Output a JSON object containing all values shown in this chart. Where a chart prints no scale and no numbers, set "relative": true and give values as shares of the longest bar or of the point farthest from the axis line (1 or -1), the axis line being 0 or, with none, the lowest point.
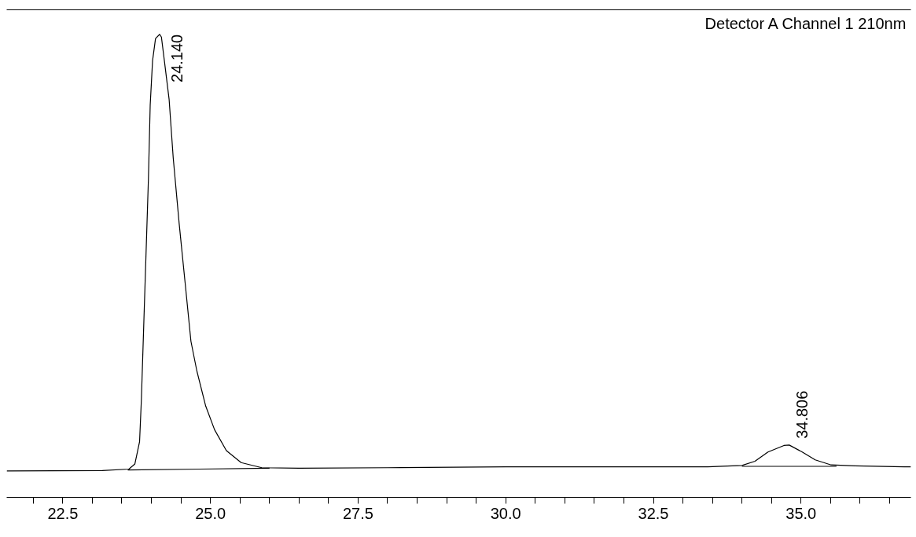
{
  "chart_data": {
    "type": "line",
    "relative": true,
    "marker": "none",
    "line_style": "solid",
    "grid": false,
    "tick_labels": "x",
    "xlim": [
      21.55,
      36.86
    ],
    "xticks": [
      {
        "value": 22.0,
        "label": null
      },
      22.5,
      {
        "value": 23.0,
        "label": null
      },
      {
        "value": 23.5,
        "label": null
      },
      {
        "value": 24.0,
        "label": null
      },
      {
        "value": 24.5,
        "label": null
      },
      {
        "value": 25.0,
        "label": "25.0"
      },
      {
        "value": 25.5,
        "label": null
      },
      {
        "value": 26.0,
        "label": null
      },
      {
        "value": 26.5,
        "label": null
      },
      {
        "value": 27.0,
        "label": null
      },
      27.5,
      {
        "value": 28.0,
        "label": null
      },
      {
        "value": 28.5,
        "label": null
      },
      {
        "value": 29.0,
        "label": null
      },
      {
        "value": 29.5,
        "label": null
      },
      {
        "value": 30.0,
        "label": "30.0"
      },
      {
        "value": 30.5,
        "label": null
      },
      {
        "value": 31.0,
        "label": null
      },
      {
        "value": 31.5,
        "label": null
      },
      {
        "value": 32.0,
        "label": null
      },
      32.5,
      {
        "value": 33.0,
        "label": null
      },
      {
        "value": 33.5,
        "label": null
      },
      {
        "value": 34.0,
        "label": null
      },
      {
        "value": 34.5,
        "label": null
      },
      {
        "value": 35.0,
        "label": "35.0"
      },
      {
        "value": 35.5,
        "label": null
      },
      {
        "value": 36.0,
        "label": null
      },
      {
        "value": 36.5,
        "label": null
      }
    ],
    "series": [
      {
        "color": "#000000",
        "x": [
          21.55,
          23.17,
          23.62,
          23.72,
          23.8,
          23.83,
          23.87,
          23.91,
          23.95,
          23.98,
          24.02,
          24.07,
          24.14,
          24.17,
          24.22,
          24.3,
          24.37,
          24.47,
          24.57,
          24.67,
          24.77,
          24.92,
          25.07,
          25.27,
          25.52,
          25.87,
          26.5,
          28.0,
          30.0,
          32.0,
          33.42,
          34.0,
          34.22,
          34.44,
          34.71,
          34.8,
          35.02,
          35.24,
          35.51,
          35.91,
          36.75,
          36.86
        ],
        "values": [
          0.057,
          0.058,
          0.061,
          0.072,
          0.12,
          0.209,
          0.369,
          0.528,
          0.688,
          0.847,
          0.943,
          0.991,
          1.0,
          0.994,
          0.943,
          0.86,
          0.733,
          0.592,
          0.465,
          0.337,
          0.273,
          0.197,
          0.146,
          0.101,
          0.075,
          0.064,
          0.063,
          0.064,
          0.066,
          0.066,
          0.066,
          0.069,
          0.078,
          0.098,
          0.112,
          0.113,
          0.098,
          0.081,
          0.07,
          0.068,
          0.066,
          0.066
        ]
      },
      {
        "color": "#000000",
        "x": [
          23.6,
          26.0
        ],
        "values": [
          0.059,
          0.063
        ]
      },
      {
        "color": "#000000",
        "x": [
          34.0,
          35.6
        ],
        "values": [
          0.067,
          0.067
        ]
      }
    ],
    "annotations": [
      {
        "text": "24.140",
        "x": 24.14,
        "y": 1.0
      },
      {
        "text": "34.806",
        "x": 34.806,
        "y": 0.113
      },
      "Detector A Channel 1 210nm"
    ]
  }
}
